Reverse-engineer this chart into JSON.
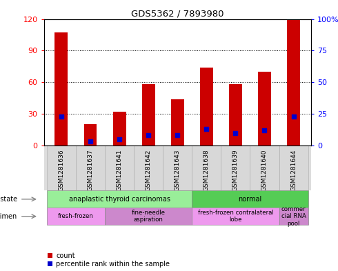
{
  "title": "GDS5362 / 7893980",
  "samples": [
    "GSM1281636",
    "GSM1281637",
    "GSM1281641",
    "GSM1281642",
    "GSM1281643",
    "GSM1281638",
    "GSM1281639",
    "GSM1281640",
    "GSM1281644"
  ],
  "counts": [
    107,
    20,
    32,
    58,
    44,
    74,
    58,
    70,
    120
  ],
  "percentile_ranks": [
    23,
    3,
    5,
    8,
    8,
    13,
    10,
    12,
    23
  ],
  "left_ylim": [
    0,
    120
  ],
  "right_ylim": [
    0,
    100
  ],
  "left_yticks": [
    0,
    30,
    60,
    90,
    120
  ],
  "right_yticks": [
    0,
    25,
    50,
    75,
    100
  ],
  "right_yticklabels": [
    "0",
    "25",
    "50",
    "75",
    "100%"
  ],
  "bar_color": "#cc0000",
  "blue_color": "#0000cc",
  "tick_label_gray": "#888888",
  "bar_width": 0.45,
  "legend_count_label": "count",
  "legend_pct_label": "percentile rank within the sample",
  "disease_groups": [
    {
      "label": "anaplastic thyroid carcinomas",
      "start": 0,
      "end": 5,
      "color": "#99ee99"
    },
    {
      "label": "normal",
      "start": 5,
      "end": 9,
      "color": "#55cc55"
    }
  ],
  "specimen_groups": [
    {
      "label": "fresh-frozen",
      "start": 0,
      "end": 2,
      "color": "#ee99ee"
    },
    {
      "label": "fine-needle\naspiration",
      "start": 2,
      "end": 5,
      "color": "#cc88cc"
    },
    {
      "label": "fresh-frozen contralateral\nlobe",
      "start": 5,
      "end": 8,
      "color": "#ee99ee"
    },
    {
      "label": "commer\ncial RNA\npool",
      "start": 8,
      "end": 9,
      "color": "#cc88cc"
    }
  ]
}
